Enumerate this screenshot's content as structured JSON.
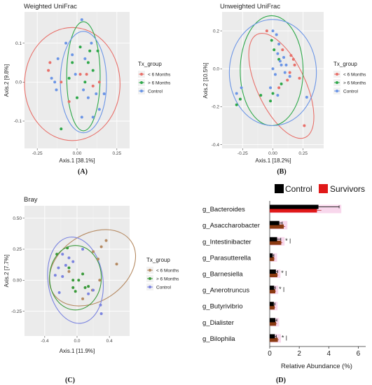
{
  "colors": {
    "lt6": "#e8706a",
    "gt6": "#2ea84a",
    "control": "#6b95e6",
    "bray_lt6": "#b58a62",
    "bray_gt6": "#3a9a3a",
    "bray_control": "#7b84e0",
    "bar_control": "#000000",
    "bar_survivors": "#e01818",
    "bar_survivors_dark": "#8b3a12",
    "panel_bg": "#ebebeb"
  },
  "chart_data": [
    {
      "type": "scatter",
      "panel_label": "(A)",
      "title": "Weighted UniFrac",
      "xlabel": "Axis.1   [38.1%]",
      "ylabel": "Axis.2   [9.8%]",
      "xlim": [
        -0.33,
        0.33
      ],
      "ylim": [
        -0.17,
        0.18
      ],
      "xticks": [
        -0.25,
        0.0,
        0.25
      ],
      "xtick_labels": [
        "-0.25",
        "0.00",
        "0.25"
      ],
      "yticks": [
        0.1,
        0.0,
        -0.1
      ],
      "ytick_labels": [
        "0.1",
        "0.0",
        "-0.1"
      ],
      "legend_title": "Tx_group",
      "legend": [
        "< 6 Months",
        "> 6 Months",
        "Control"
      ],
      "grid": true,
      "series": [
        {
          "name": "< 6 Months",
          "color_key": "lt6",
          "points": [
            [
              -0.17,
              0.05
            ],
            [
              -0.18,
              0.03
            ],
            [
              -0.1,
              0.0
            ],
            [
              0.06,
              0.02
            ],
            [
              0.1,
              -0.01
            ],
            [
              0.14,
              0.0
            ],
            [
              -0.05,
              -0.05
            ],
            [
              0.02,
              0.02
            ]
          ]
        },
        {
          "name": "> 6 Months",
          "color_key": "gt6",
          "points": [
            [
              -0.1,
              -0.12
            ],
            [
              0.02,
              0.09
            ],
            [
              0.07,
              0.05
            ],
            [
              0.08,
              0.08
            ],
            [
              0.1,
              0.03
            ],
            [
              0.05,
              0.0
            ],
            [
              -0.03,
              0.05
            ],
            [
              0.13,
              0.08
            ],
            [
              -0.05,
              0.01
            ],
            [
              0.0,
              -0.04
            ]
          ]
        },
        {
          "name": "Control",
          "color_key": "control",
          "points": [
            [
              0.03,
              0.16
            ],
            [
              -0.07,
              0.1
            ],
            [
              -0.03,
              0.07
            ],
            [
              0.05,
              0.06
            ],
            [
              0.09,
              0.1
            ],
            [
              -0.16,
              0.01
            ],
            [
              -0.13,
              -0.02
            ],
            [
              -0.14,
              0.0
            ],
            [
              0.07,
              -0.04
            ],
            [
              0.14,
              -0.07
            ],
            [
              0.03,
              -0.09
            ],
            [
              0.17,
              -0.03
            ],
            [
              -0.01,
              0.02
            ],
            [
              0.04,
              -0.02
            ],
            [
              0.1,
              -0.09
            ],
            [
              -0.12,
              0.06
            ],
            [
              0.12,
              -0.03
            ]
          ]
        }
      ],
      "ellipses": [
        {
          "color_key": "lt6",
          "cx": -0.03,
          "cy": -0.005,
          "rx": 0.3,
          "ry": 0.145,
          "angle": 0
        },
        {
          "color_key": "gt6",
          "cx": 0.04,
          "cy": 0.015,
          "rx": 0.105,
          "ry": 0.14,
          "angle": 0
        },
        {
          "color_key": "control",
          "cx": 0.04,
          "cy": 0.0,
          "rx": 0.145,
          "ry": 0.13,
          "angle": 0
        }
      ]
    },
    {
      "type": "scatter",
      "panel_label": "(B)",
      "title": "Unweighted UniFrac",
      "xlabel": "Axis.1   [18.2%]",
      "ylabel": "Axis.2   [10.5%]",
      "xlim": [
        -0.42,
        0.42
      ],
      "ylim": [
        -0.42,
        0.3
      ],
      "xticks": [
        -0.25,
        0.0,
        0.25
      ],
      "xtick_labels": [
        "-0.25",
        "0.00",
        "0.25"
      ],
      "yticks": [
        0.2,
        0.0,
        -0.2,
        -0.4
      ],
      "ytick_labels": [
        "0.2",
        "0.0",
        "-0.2",
        "-0.4"
      ],
      "legend_title": "Tx_group",
      "legend": [
        "< 6 Months",
        "> 6 Months",
        "Control"
      ],
      "grid": true,
      "series": [
        {
          "name": "< 6 Months",
          "color_key": "lt6",
          "points": [
            [
              -0.05,
              0.2
            ],
            [
              0.15,
              0.07
            ],
            [
              0.17,
              0.05
            ],
            [
              0.18,
              0.02
            ],
            [
              0.14,
              -0.02
            ],
            [
              0.22,
              -0.05
            ],
            [
              0.26,
              -0.3
            ],
            [
              0.05,
              -0.1
            ],
            [
              0.12,
              -0.06
            ],
            [
              0.08,
              0.1
            ]
          ]
        },
        {
          "name": "> 6 Months",
          "color_key": "gt6",
          "points": [
            [
              -0.3,
              -0.19
            ],
            [
              -0.27,
              -0.16
            ],
            [
              -0.01,
              0.15
            ],
            [
              0.01,
              0.1
            ],
            [
              0.05,
              0.05
            ],
            [
              -0.02,
              -0.17
            ],
            [
              0.0,
              -0.13
            ],
            [
              -0.1,
              -0.14
            ],
            [
              0.07,
              -0.08
            ]
          ]
        },
        {
          "name": "Control",
          "color_key": "control",
          "points": [
            [
              -0.3,
              -0.13
            ],
            [
              -0.26,
              -0.1
            ],
            [
              0.0,
              0.2
            ],
            [
              0.03,
              0.18
            ],
            [
              0.05,
              0.13
            ],
            [
              0.04,
              0.08
            ],
            [
              0.06,
              0.04
            ],
            [
              0.09,
              0.06
            ],
            [
              0.11,
              0.02
            ],
            [
              0.14,
              -0.04
            ],
            [
              0.28,
              -0.15
            ],
            [
              0.0,
              0.0
            ],
            [
              0.02,
              -0.03
            ],
            [
              0.04,
              -0.14
            ],
            [
              -0.02,
              -0.1
            ],
            [
              0.07,
              0.02
            ],
            [
              0.1,
              -0.02
            ]
          ]
        }
      ],
      "ellipses": [
        {
          "color_key": "lt6",
          "cx": 0.07,
          "cy": -0.09,
          "rx": 0.2,
          "ry": 0.3,
          "angle": -25
        },
        {
          "color_key": "gt6",
          "cx": -0.01,
          "cy": -0.01,
          "rx": 0.26,
          "ry": 0.29,
          "angle": 0
        },
        {
          "color_key": "control",
          "cx": 0.0,
          "cy": -0.02,
          "rx": 0.36,
          "ry": 0.28,
          "angle": 0
        }
      ]
    },
    {
      "type": "scatter",
      "panel_label": "(C)",
      "title": "Bray",
      "xlabel": "Axis.1   [11.9%]",
      "ylabel": "Axis.2   [7.7%]",
      "xlim": [
        -0.65,
        0.65
      ],
      "ylim": [
        -0.45,
        0.6
      ],
      "xticks": [
        -0.4,
        0.0,
        0.4
      ],
      "xtick_labels": [
        "-0.4",
        "0.0",
        "0.4"
      ],
      "yticks": [
        0.5,
        0.25,
        0.0,
        -0.25
      ],
      "ytick_labels": [
        "0.50",
        "0.25",
        "0.00",
        "-0.25"
      ],
      "legend_title": "Tx_group",
      "legend": [
        "< 6 Months",
        "> 6 Months",
        "Control"
      ],
      "grid": true,
      "series": [
        {
          "name": "< 6 Months",
          "color_key": "bray_lt6",
          "points": [
            [
              0.36,
              0.32
            ],
            [
              0.49,
              0.13
            ],
            [
              0.3,
              0.27
            ],
            [
              0.28,
              0.0
            ],
            [
              0.19,
              -0.08
            ],
            [
              0.07,
              -0.15
            ],
            [
              -0.1,
              0.07
            ],
            [
              0.2,
              0.23
            ],
            [
              0.26,
              0.17
            ]
          ]
        },
        {
          "name": "> 6 Months",
          "color_key": "bray_gt6",
          "points": [
            [
              -0.25,
              0.21
            ],
            [
              -0.12,
              0.26
            ],
            [
              -0.05,
              0.0
            ],
            [
              0.07,
              0.05
            ],
            [
              0.1,
              -0.06
            ],
            [
              -0.02,
              -0.09
            ],
            [
              -0.05,
              -0.06
            ],
            [
              0.14,
              -0.05
            ],
            [
              -0.1,
              0.1
            ],
            [
              0.02,
              0.0
            ]
          ]
        },
        {
          "name": "Control",
          "color_key": "bray_control",
          "points": [
            [
              -0.18,
              0.21
            ],
            [
              -0.23,
              0.1
            ],
            [
              -0.27,
              0.04
            ],
            [
              -0.18,
              0.03
            ],
            [
              -0.22,
              -0.1
            ],
            [
              -0.14,
              0.12
            ],
            [
              -0.1,
              0.18
            ],
            [
              0.07,
              0.25
            ],
            [
              0.3,
              -0.27
            ],
            [
              -0.05,
              0.15
            ],
            [
              0.14,
              -0.11
            ],
            [
              0.2,
              -0.08
            ],
            [
              0.29,
              -0.2
            ]
          ]
        }
      ],
      "ellipses": [
        {
          "color_key": "bray_lt6",
          "cx": 0.19,
          "cy": 0.1,
          "rx": 0.58,
          "ry": 0.27,
          "angle": -34
        },
        {
          "color_key": "bray_gt6",
          "cx": -0.02,
          "cy": 0.02,
          "rx": 0.32,
          "ry": 0.26,
          "angle": 0
        },
        {
          "color_key": "bray_control",
          "cx": -0.02,
          "cy": 0.0,
          "rx": 0.34,
          "ry": 0.35,
          "angle": -8
        }
      ]
    },
    {
      "type": "bar",
      "orientation": "horizontal",
      "panel_label": "(D)",
      "xlabel": "Relative Abundance (%)",
      "xlim": [
        0,
        6.5
      ],
      "xticks": [
        0,
        2,
        4,
        6
      ],
      "xtick_labels": [
        "0",
        "2",
        "4",
        "6"
      ],
      "legend": [
        "Control",
        "Survivors"
      ],
      "legend_position": "top",
      "categories": [
        "g_Bacteroides",
        "g_Asaccharobacter",
        "g_Intestinibacter",
        "g_Parasutterella",
        "g_Barnesiella",
        "g_Anerotruncus",
        "g_Butyrivibrio",
        "g_Dialister",
        "g_Bilophila"
      ],
      "significance": [
        "",
        "",
        "*",
        "",
        "*",
        "*",
        "",
        "",
        "*"
      ],
      "series": [
        {
          "name": "Control",
          "values": [
            3.3,
            0.65,
            0.5,
            0.2,
            0.42,
            0.3,
            0.28,
            0.38,
            0.35
          ],
          "err": [
            1.4,
            0.2,
            0.25,
            0.08,
            0.12,
            0.08,
            0.07,
            0.1,
            0.1
          ]
        },
        {
          "name": "Survivors",
          "values": [
            3.2,
            0.95,
            0.78,
            0.3,
            0.52,
            0.38,
            0.33,
            0.43,
            0.55
          ],
          "err": [
            0.3,
            0.1,
            0.08,
            0.05,
            0.06,
            0.05,
            0.05,
            0.06,
            0.06
          ]
        }
      ]
    }
  ]
}
